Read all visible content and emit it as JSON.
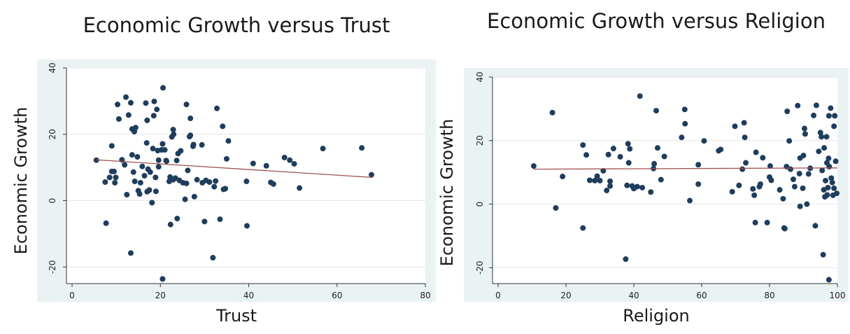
{
  "chart_data": [
    {
      "type": "scatter",
      "title": "Economic Growth versus Trust",
      "xlabel": "Trust",
      "ylabel": "Economic Growth",
      "xlim": [
        0,
        80
      ],
      "ylim": [
        -25,
        40
      ],
      "xticks": [
        "0",
        "20",
        "40",
        "60",
        "80"
      ],
      "yticks": [
        "-20",
        "0",
        "20",
        "40"
      ],
      "grid": true,
      "colors": {
        "points": "#1f3d5c",
        "fit_line": "#a05050",
        "plot_bg": "#eaf2f3",
        "grid": "#e6e6e6"
      },
      "fit_line": {
        "x": [
          5.5,
          68
        ],
        "y": [
          12.3,
          7.0
        ]
      },
      "points": [
        [
          5.5,
          12.2
        ],
        [
          7.5,
          5.6
        ],
        [
          7.7,
          -6.8
        ],
        [
          8.5,
          7
        ],
        [
          9,
          16.5
        ],
        [
          9,
          8.8
        ],
        [
          9.5,
          8.8
        ],
        [
          9.7,
          5.4
        ],
        [
          9.9,
          7
        ],
        [
          10.3,
          29
        ],
        [
          10.6,
          24.6
        ],
        [
          11.3,
          12.3
        ],
        [
          11.9,
          10.8
        ],
        [
          12.2,
          31.2
        ],
        [
          12.4,
          1.8
        ],
        [
          12.8,
          25.8
        ],
        [
          13.3,
          -15.8
        ],
        [
          13.3,
          29.5
        ],
        [
          13.6,
          13.8
        ],
        [
          13.6,
          21.6
        ],
        [
          13.9,
          8.6
        ],
        [
          14.1,
          20.8
        ],
        [
          14.2,
          5.8
        ],
        [
          14.4,
          22
        ],
        [
          14.8,
          13.2
        ],
        [
          15,
          3
        ],
        [
          15.3,
          2
        ],
        [
          15.5,
          5.4
        ],
        [
          15.9,
          10.3
        ],
        [
          16.4,
          7.5
        ],
        [
          16.7,
          29.4
        ],
        [
          16.9,
          17.4
        ],
        [
          17,
          2.7
        ],
        [
          17,
          24.2
        ],
        [
          17.2,
          9.5
        ],
        [
          17.5,
          3.2
        ],
        [
          17.7,
          8.6
        ],
        [
          18.1,
          -0.6
        ],
        [
          18.3,
          15.7
        ],
        [
          18.5,
          25.6
        ],
        [
          18.6,
          29.9
        ],
        [
          18.9,
          7
        ],
        [
          19,
          2.8
        ],
        [
          19.2,
          27.5
        ],
        [
          19.4,
          15.1
        ],
        [
          19.6,
          10.2
        ],
        [
          19.6,
          12.2
        ],
        [
          20.3,
          15.3
        ],
        [
          20.5,
          17.1
        ],
        [
          20.5,
          -23.6
        ],
        [
          20.6,
          34
        ],
        [
          21,
          15.3
        ],
        [
          21.3,
          12.1
        ],
        [
          21.4,
          11.9
        ],
        [
          22,
          5.8
        ],
        [
          22.2,
          7.1
        ],
        [
          22.3,
          -7.2
        ],
        [
          22.6,
          19.2
        ],
        [
          22.9,
          6.3
        ],
        [
          22.9,
          21.4
        ],
        [
          23,
          20
        ],
        [
          23.4,
          6.8
        ],
        [
          23.7,
          12.1
        ],
        [
          23.8,
          -5.4
        ],
        [
          24,
          14.2
        ],
        [
          24.3,
          6.1
        ],
        [
          24.6,
          15
        ],
        [
          25.1,
          5.4
        ],
        [
          25.6,
          0.4
        ],
        [
          25.9,
          5.2
        ],
        [
          25.9,
          29
        ],
        [
          26.2,
          9.1
        ],
        [
          26.6,
          19.3
        ],
        [
          26.8,
          24.8
        ],
        [
          26.8,
          19.7
        ],
        [
          27.4,
          16.4
        ],
        [
          27.5,
          16.9
        ],
        [
          27.7,
          1.2
        ],
        [
          28.3,
          6.3
        ],
        [
          29.4,
          16.8
        ],
        [
          29.5,
          5.4
        ],
        [
          30,
          -6.3
        ],
        [
          30.3,
          6.1
        ],
        [
          31.1,
          5.6
        ],
        [
          31.9,
          -17.2
        ],
        [
          32.2,
          4.2
        ],
        [
          32.5,
          5.9
        ],
        [
          32.8,
          27.8
        ],
        [
          33.5,
          -5.6
        ],
        [
          34.1,
          22.4
        ],
        [
          34.3,
          3.4
        ],
        [
          34.7,
          3.6
        ],
        [
          35,
          12.6
        ],
        [
          35.4,
          18
        ],
        [
          39.5,
          5.8
        ],
        [
          39.6,
          -7.6
        ],
        [
          41,
          11.2
        ],
        [
          44,
          10.5
        ],
        [
          45,
          5.5
        ],
        [
          45.6,
          5
        ],
        [
          48.1,
          13
        ],
        [
          49.3,
          12.2
        ],
        [
          50.3,
          11.1
        ],
        [
          51.5,
          3.8
        ],
        [
          56.8,
          15.7
        ],
        [
          65.6,
          15.9
        ],
        [
          67.8,
          7.8
        ]
      ]
    },
    {
      "type": "scatter",
      "title": "Economic Growth versus Religion",
      "xlabel": "Religion",
      "ylabel": "Economic Growth",
      "xlim": [
        0,
        100
      ],
      "ylim": [
        -25,
        40
      ],
      "xticks": [
        "0",
        "20",
        "40",
        "60",
        "80",
        "100"
      ],
      "yticks": [
        "-20",
        "0",
        "20",
        "40"
      ],
      "grid": true,
      "colors": {
        "points": "#1f3d5c",
        "fit_line": "#a05050",
        "plot_bg": "#eaf2f3",
        "grid": "#e6e6e6"
      },
      "fit_line": {
        "x": [
          10.5,
          100
        ],
        "y": [
          11.0,
          11.4
        ]
      },
      "points": [
        [
          10.5,
          12
        ],
        [
          16,
          28.8
        ],
        [
          17,
          -1.2
        ],
        [
          19,
          8.7
        ],
        [
          25,
          18.6
        ],
        [
          25,
          -7.5
        ],
        [
          26,
          15.5
        ],
        [
          27,
          7.5
        ],
        [
          28.5,
          7.4
        ],
        [
          29.2,
          8.8
        ],
        [
          30,
          7.4
        ],
        [
          31,
          10.5
        ],
        [
          32,
          4.3
        ],
        [
          32.5,
          15.6
        ],
        [
          33,
          5.7
        ],
        [
          33,
          7.2
        ],
        [
          34,
          17.5
        ],
        [
          36,
          14.9
        ],
        [
          37.6,
          -17.3
        ],
        [
          38,
          5.9
        ],
        [
          38.3,
          19
        ],
        [
          38.5,
          13
        ],
        [
          38.8,
          17.4
        ],
        [
          39.5,
          5.7
        ],
        [
          40,
          4.9
        ],
        [
          41,
          5.5
        ],
        [
          41.8,
          34
        ],
        [
          42.5,
          5.2
        ],
        [
          45,
          3.8
        ],
        [
          45.8,
          11.2
        ],
        [
          46,
          12.7
        ],
        [
          46.6,
          29.4
        ],
        [
          47,
          17.7
        ],
        [
          48,
          7.7
        ],
        [
          49,
          15
        ],
        [
          54.1,
          21
        ],
        [
          55,
          29.8
        ],
        [
          55.1,
          25.3
        ],
        [
          56.5,
          1.1
        ],
        [
          59,
          12.4
        ],
        [
          59,
          6.3
        ],
        [
          60.7,
          19.9
        ],
        [
          65,
          16.8
        ],
        [
          65.6,
          17.2
        ],
        [
          69,
          3.9
        ],
        [
          69.8,
          24.5
        ],
        [
          71,
          5.9
        ],
        [
          72,
          11
        ],
        [
          72.5,
          25.6
        ],
        [
          72.7,
          21
        ],
        [
          73,
          13
        ],
        [
          75.1,
          4.8
        ],
        [
          75.5,
          2.8
        ],
        [
          75.8,
          -5.8
        ],
        [
          76,
          16.3
        ],
        [
          77,
          5.5
        ],
        [
          77.3,
          6.3
        ],
        [
          78,
          14.6
        ],
        [
          79.3,
          -5.8
        ],
        [
          80,
          8.5
        ],
        [
          80.2,
          12
        ],
        [
          80.5,
          7.5
        ],
        [
          83,
          4.5
        ],
        [
          84,
          1.7
        ],
        [
          84.3,
          -7.5
        ],
        [
          84.5,
          -7.7
        ],
        [
          85,
          11.8
        ],
        [
          85.2,
          29.2
        ],
        [
          85.8,
          19.9
        ],
        [
          86.2,
          11
        ],
        [
          87,
          7.8
        ],
        [
          87.4,
          5.5
        ],
        [
          88.3,
          31
        ],
        [
          88.8,
          9.6
        ],
        [
          89,
          -0.7
        ],
        [
          89,
          14.5
        ],
        [
          89.8,
          5
        ],
        [
          90,
          15.3
        ],
        [
          90.3,
          23.8
        ],
        [
          90.5,
          22.1
        ],
        [
          91,
          0
        ],
        [
          91.5,
          9.5
        ],
        [
          92,
          11.3
        ],
        [
          93,
          27.9
        ],
        [
          93.5,
          -6.8
        ],
        [
          93.8,
          31.1
        ],
        [
          94.5,
          16.6
        ],
        [
          95,
          22.5
        ],
        [
          95.3,
          21.2
        ],
        [
          95.5,
          10.6
        ],
        [
          95.8,
          -15.9
        ],
        [
          96,
          4.5
        ],
        [
          96.1,
          17.7
        ],
        [
          96.3,
          2.3
        ],
        [
          96.5,
          7.4
        ],
        [
          96.8,
          21.2
        ],
        [
          96.9,
          13
        ],
        [
          97,
          2.9
        ],
        [
          97.2,
          5.2
        ],
        [
          97.4,
          14.4
        ],
        [
          97.5,
          27.8
        ],
        [
          97.5,
          -23.8
        ],
        [
          97.6,
          11.8
        ],
        [
          98,
          30.2
        ],
        [
          98.2,
          8.2
        ],
        [
          98.5,
          6.8
        ],
        [
          98.7,
          2.8
        ],
        [
          99,
          24.5
        ],
        [
          99,
          5
        ],
        [
          99.2,
          27.8
        ],
        [
          99.5,
          13.5
        ],
        [
          99.8,
          3.4
        ]
      ]
    }
  ]
}
